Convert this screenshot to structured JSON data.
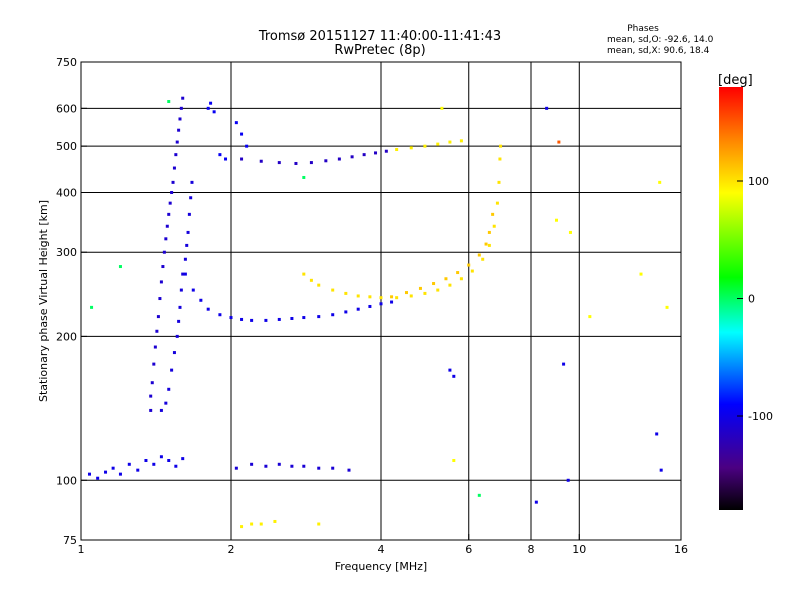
{
  "chart_data": {
    "type": "scatter",
    "title": "Tromsø 20151127 11:40:00-11:41:43",
    "subtitle": "RwPretec (8p)",
    "xlabel": "Frequency [MHz]",
    "ylabel": "Stationary phase Virtual Height [km]",
    "x_scale": "log",
    "y_scale": "log",
    "xlim": [
      1,
      16
    ],
    "ylim": [
      75,
      750
    ],
    "x_ticks": [
      1,
      2,
      4,
      6,
      8,
      10,
      16
    ],
    "x_tick_labels": [
      "1",
      "2",
      "4",
      "6",
      "8",
      "10",
      "16"
    ],
    "y_ticks": [
      75,
      100,
      200,
      300,
      400,
      500,
      600,
      750
    ],
    "y_tick_labels": [
      "75",
      "100",
      "200",
      "300",
      "400",
      "500",
      "600",
      "750"
    ],
    "x_gridlines": [
      2,
      4,
      6,
      8,
      10
    ],
    "y_gridlines": [
      100,
      200,
      300,
      400,
      500,
      600
    ],
    "grid": true,
    "stats": {
      "title": "Phases",
      "line_o": "mean, sd,O: -92.6, 14.0",
      "line_x": "mean, sd,X:  90.6, 18.4"
    },
    "colorbar": {
      "label": "[deg]",
      "range": [
        -180,
        180
      ],
      "ticks": [
        100,
        0,
        -100
      ],
      "tick_labels": [
        "100",
        "0",
        "-100"
      ],
      "colormap": "rainbow"
    },
    "series": [
      {
        "phase": -100,
        "points": [
          [
            1.04,
            103
          ],
          [
            1.08,
            101
          ],
          [
            1.12,
            104
          ],
          [
            1.16,
            106
          ],
          [
            1.2,
            103
          ],
          [
            1.25,
            108
          ],
          [
            1.3,
            105
          ],
          [
            1.35,
            110
          ],
          [
            1.4,
            108
          ],
          [
            1.45,
            112
          ],
          [
            1.5,
            110
          ],
          [
            1.55,
            107
          ],
          [
            1.6,
            111
          ]
        ]
      },
      {
        "phase": -110,
        "points": [
          [
            1.38,
            140
          ],
          [
            1.38,
            150
          ],
          [
            1.39,
            160
          ],
          [
            1.4,
            175
          ],
          [
            1.41,
            190
          ],
          [
            1.42,
            205
          ],
          [
            1.43,
            220
          ],
          [
            1.44,
            240
          ],
          [
            1.45,
            260
          ],
          [
            1.46,
            280
          ],
          [
            1.47,
            300
          ],
          [
            1.48,
            320
          ],
          [
            1.49,
            340
          ],
          [
            1.5,
            360
          ],
          [
            1.51,
            380
          ],
          [
            1.52,
            400
          ],
          [
            1.53,
            420
          ],
          [
            1.54,
            450
          ],
          [
            1.55,
            480
          ],
          [
            1.56,
            510
          ],
          [
            1.57,
            540
          ],
          [
            1.58,
            570
          ],
          [
            1.59,
            600
          ],
          [
            1.6,
            630
          ]
        ]
      },
      {
        "phase": -105,
        "points": [
          [
            1.45,
            140
          ],
          [
            1.48,
            145
          ],
          [
            1.5,
            155
          ],
          [
            1.52,
            170
          ],
          [
            1.54,
            185
          ],
          [
            1.56,
            200
          ],
          [
            1.57,
            215
          ],
          [
            1.58,
            230
          ],
          [
            1.59,
            250
          ],
          [
            1.6,
            270
          ],
          [
            1.62,
            290
          ],
          [
            1.63,
            310
          ],
          [
            1.64,
            330
          ],
          [
            1.65,
            360
          ],
          [
            1.66,
            390
          ],
          [
            1.67,
            420
          ]
        ]
      },
      {
        "phase": -100,
        "points": [
          [
            1.62,
            270
          ],
          [
            1.68,
            250
          ],
          [
            1.74,
            238
          ],
          [
            1.8,
            228
          ],
          [
            1.9,
            222
          ],
          [
            2.0,
            219
          ],
          [
            2.1,
            217
          ],
          [
            2.2,
            216
          ],
          [
            2.35,
            216
          ],
          [
            2.5,
            217
          ],
          [
            2.65,
            218
          ],
          [
            2.8,
            219
          ],
          [
            3.0,
            220
          ],
          [
            3.2,
            222
          ],
          [
            3.4,
            225
          ],
          [
            3.6,
            228
          ],
          [
            3.8,
            231
          ],
          [
            4.0,
            234
          ],
          [
            4.2,
            236
          ]
        ]
      },
      {
        "phase": -115,
        "points": [
          [
            2.1,
            470
          ],
          [
            2.3,
            465
          ],
          [
            2.5,
            462
          ],
          [
            2.7,
            460
          ],
          [
            2.9,
            462
          ],
          [
            3.1,
            466
          ],
          [
            3.3,
            470
          ],
          [
            3.5,
            475
          ],
          [
            3.7,
            480
          ],
          [
            3.9,
            484
          ],
          [
            4.1,
            488
          ]
        ]
      },
      {
        "phase": -95,
        "points": [
          [
            1.8,
            600
          ],
          [
            1.82,
            615
          ],
          [
            1.85,
            590
          ],
          [
            1.9,
            480
          ],
          [
            1.95,
            470
          ],
          [
            2.05,
            560
          ],
          [
            2.1,
            530
          ],
          [
            2.15,
            500
          ]
        ]
      },
      {
        "phase": 100,
        "points": [
          [
            2.8,
            270
          ],
          [
            2.9,
            262
          ],
          [
            3.0,
            256
          ],
          [
            3.2,
            250
          ],
          [
            3.4,
            246
          ],
          [
            3.6,
            243
          ],
          [
            3.8,
            242
          ],
          [
            4.0,
            241
          ],
          [
            4.3,
            241
          ],
          [
            4.6,
            243
          ],
          [
            4.9,
            246
          ],
          [
            5.2,
            250
          ],
          [
            5.5,
            256
          ],
          [
            5.8,
            264
          ],
          [
            6.1,
            274
          ],
          [
            6.4,
            290
          ],
          [
            6.6,
            310
          ],
          [
            6.75,
            340
          ],
          [
            6.85,
            380
          ],
          [
            6.9,
            420
          ],
          [
            6.93,
            470
          ],
          [
            6.95,
            500
          ]
        ]
      },
      {
        "phase": 110,
        "points": [
          [
            4.2,
            242
          ],
          [
            4.5,
            247
          ],
          [
            4.8,
            252
          ],
          [
            5.1,
            258
          ],
          [
            5.4,
            264
          ],
          [
            5.7,
            272
          ],
          [
            6.0,
            282
          ],
          [
            6.3,
            296
          ],
          [
            6.5,
            312
          ],
          [
            6.6,
            330
          ],
          [
            6.7,
            360
          ]
        ]
      },
      {
        "phase": 95,
        "points": [
          [
            4.3,
            492
          ],
          [
            4.6,
            496
          ],
          [
            4.9,
            500
          ],
          [
            5.2,
            505
          ],
          [
            5.5,
            510
          ],
          [
            5.8,
            513
          ]
        ]
      },
      {
        "phase": -108,
        "points": [
          [
            2.05,
            106
          ],
          [
            2.2,
            108
          ],
          [
            2.35,
            107
          ],
          [
            2.5,
            108
          ],
          [
            2.65,
            107
          ],
          [
            2.8,
            107
          ],
          [
            3.0,
            106
          ],
          [
            3.2,
            106
          ],
          [
            3.45,
            105
          ]
        ]
      },
      {
        "phase": 95,
        "points": [
          [
            2.1,
            80
          ],
          [
            2.2,
            81
          ],
          [
            2.3,
            81
          ],
          [
            2.45,
            82
          ],
          [
            3.0,
            81
          ]
        ]
      },
      {
        "phase": 90,
        "points": [
          [
            9.0,
            350
          ],
          [
            9.6,
            330
          ],
          [
            10.5,
            220
          ],
          [
            13.3,
            270
          ],
          [
            14.5,
            420
          ],
          [
            15.0,
            230
          ],
          [
            5.3,
            600
          ],
          [
            5.6,
            110
          ]
        ]
      },
      {
        "phase": -100,
        "points": [
          [
            5.5,
            170
          ],
          [
            5.6,
            165
          ],
          [
            8.2,
            90
          ],
          [
            8.6,
            600
          ],
          [
            9.3,
            175
          ],
          [
            9.5,
            100
          ],
          [
            14.3,
            125
          ],
          [
            14.6,
            105
          ]
        ]
      },
      {
        "phase": 150,
        "points": [
          [
            9.1,
            510
          ]
        ]
      },
      {
        "phase": 0,
        "points": [
          [
            1.2,
            280
          ],
          [
            1.05,
            230
          ],
          [
            1.5,
            620
          ],
          [
            2.8,
            430
          ],
          [
            6.3,
            93
          ]
        ]
      }
    ]
  }
}
